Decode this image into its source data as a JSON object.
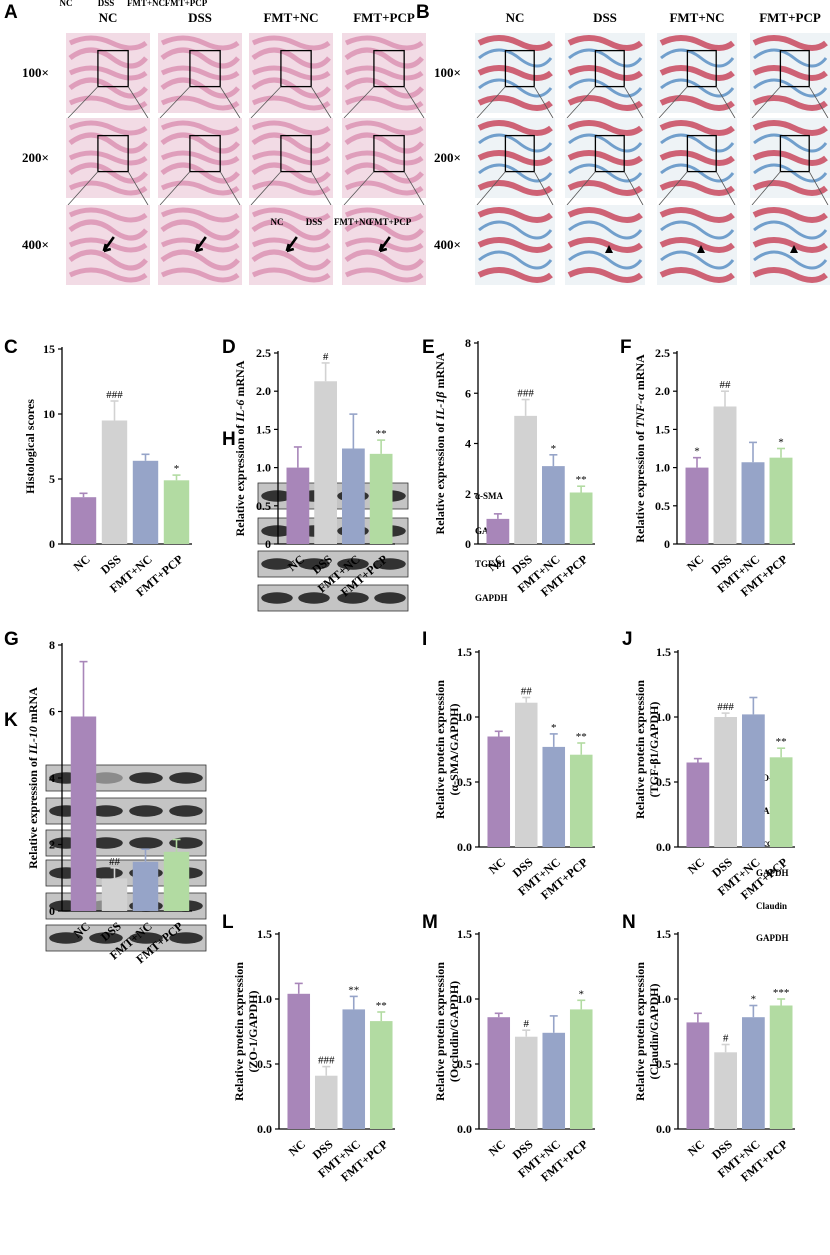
{
  "palette": {
    "NC": "#a886b9",
    "DSS": "#d2d2d2",
    "FMT+NC": "#96a4c8",
    "FMT+PCP": "#b2dba2",
    "he_tissue": "#d98fb0",
    "he_light": "#f2dbe5",
    "masson_red": "#c8485e",
    "masson_blue": "#5b8fc4",
    "masson_light": "#eef3f6",
    "blot_dark": "#222222",
    "blot_bg": "#c4c4c4"
  },
  "icons": {
    "arrow": "arrow-icon",
    "triangle": "arrowhead-icon",
    "box": "zoom-box-icon"
  },
  "panelA": {
    "label": "A",
    "groups": [
      "NC",
      "DSS",
      "FMT+NC",
      "FMT+PCP"
    ],
    "mags": [
      "100×",
      "200×",
      "400×"
    ]
  },
  "panelB": {
    "label": "B",
    "groups": [
      "NC",
      "DSS",
      "FMT+NC",
      "FMT+PCP"
    ],
    "mags": [
      "100×",
      "200×",
      "400×"
    ]
  },
  "panelH": {
    "label": "H",
    "lanes": [
      "NC",
      "DSS",
      "FMT+NC",
      "FMT+PCP"
    ],
    "bands": [
      "α-SMA",
      "GAPDH",
      "TGF-β1",
      "GAPDH"
    ]
  },
  "panelK": {
    "label": "K",
    "lanes": [
      "NC",
      "DSS",
      "FMT+NC",
      "FMT+PCP"
    ],
    "bands": [
      "ZO-1",
      "GAPDH",
      "Occludin",
      "GAPDH",
      "Claudin",
      "GAPDH"
    ]
  },
  "chart_data": [
    {
      "id": "C",
      "type": "bar",
      "categories": [
        "NC",
        "DSS",
        "FMT+NC",
        "FMT+PCP"
      ],
      "values": [
        3.6,
        9.5,
        6.4,
        4.9
      ],
      "errors": [
        0.3,
        1.5,
        0.5,
        0.4
      ],
      "annotations": [
        "",
        "###",
        "",
        "*"
      ],
      "ylabel": "Histological scores",
      "ylim": [
        0,
        15
      ],
      "yticks": [
        0,
        5,
        10,
        15
      ],
      "yticklabels": [
        "0",
        "5",
        "10",
        "15"
      ]
    },
    {
      "id": "D",
      "type": "bar",
      "categories": [
        "NC",
        "DSS",
        "FMT+NC",
        "FMT+PCP"
      ],
      "values": [
        1.0,
        2.13,
        1.25,
        1.18
      ],
      "errors": [
        0.27,
        0.24,
        0.45,
        0.18
      ],
      "annotations": [
        "",
        "#",
        "",
        "**"
      ],
      "ylabel": "Relative expression of IL-6 mRNA",
      "ylabel_pre": "Relative expression of ",
      "ylabel_it": "IL-6",
      "ylabel_post": " mRNA",
      "ylim": [
        0,
        2.5
      ],
      "yticks": [
        0,
        0.5,
        1.0,
        1.5,
        2.0,
        2.5
      ],
      "yticklabels": [
        "0",
        "0.5",
        "1.0",
        "1.5",
        "2.0",
        "2.5"
      ]
    },
    {
      "id": "E",
      "type": "bar",
      "categories": [
        "NC",
        "DSS",
        "FMT+NC",
        "FMT+PCP"
      ],
      "values": [
        1.0,
        5.1,
        3.1,
        2.05
      ],
      "errors": [
        0.2,
        0.65,
        0.45,
        0.25
      ],
      "annotations": [
        "",
        "###",
        "*",
        "**"
      ],
      "ylabel": "Relative expression of IL-1β mRNA",
      "ylabel_pre": "Relative expression of ",
      "ylabel_it": "IL-1β",
      "ylabel_post": " mRNA",
      "ylim": [
        0,
        8
      ],
      "yticks": [
        0,
        2,
        4,
        6,
        8
      ],
      "yticklabels": [
        "0",
        "2",
        "4",
        "6",
        "8"
      ]
    },
    {
      "id": "F",
      "type": "bar",
      "categories": [
        "NC",
        "DSS",
        "FMT+NC",
        "FMT+PCP"
      ],
      "values": [
        1.0,
        1.8,
        1.07,
        1.13
      ],
      "errors": [
        0.13,
        0.2,
        0.26,
        0.12
      ],
      "annotations": [
        "*",
        "##",
        "",
        "*"
      ],
      "ylabel": "Relative expression of TNF-α mRNA",
      "ylabel_pre": "Relative expression of ",
      "ylabel_it": "TNF-α",
      "ylabel_post": " mRNA",
      "ylim": [
        0,
        2.5
      ],
      "yticks": [
        0,
        0.5,
        1.0,
        1.5,
        2.0,
        2.5
      ],
      "yticklabels": [
        "0",
        "0.5",
        "1.0",
        "1.5",
        "2.0",
        "2.5"
      ]
    },
    {
      "id": "G",
      "type": "bar",
      "categories": [
        "NC",
        "DSS",
        "FMT+NC",
        "FMT+PCP"
      ],
      "values": [
        5.85,
        0.98,
        1.48,
        1.78
      ],
      "errors": [
        1.65,
        0.32,
        0.38,
        0.37
      ],
      "annotations": [
        "",
        "##",
        "",
        ""
      ],
      "ylabel": "Relative expression of IL-10 mRNA",
      "ylabel_pre": "Relative expression of ",
      "ylabel_it": "IL-10",
      "ylabel_post": " mRNA",
      "ylim": [
        0,
        8
      ],
      "yticks": [
        0,
        2,
        4,
        6,
        8
      ],
      "yticklabels": [
        "0",
        "2",
        "4",
        "6",
        "8"
      ]
    },
    {
      "id": "I",
      "type": "bar",
      "categories": [
        "NC",
        "DSS",
        "FMT+NC",
        "FMT+PCP"
      ],
      "values": [
        0.85,
        1.11,
        0.77,
        0.71
      ],
      "errors": [
        0.04,
        0.04,
        0.1,
        0.09
      ],
      "annotations": [
        "",
        "##",
        "*",
        "**"
      ],
      "ylabel_lines": [
        "Relative protein expression",
        "(α-SMA/GAPDH)"
      ],
      "ylim": [
        0,
        1.5
      ],
      "yticks": [
        0,
        0.5,
        1.0,
        1.5
      ],
      "yticklabels": [
        "0.0",
        "0.5",
        "1.0",
        "1.5"
      ]
    },
    {
      "id": "J",
      "type": "bar",
      "categories": [
        "NC",
        "DSS",
        "FMT+NC",
        "FMT+PCP"
      ],
      "values": [
        0.65,
        1.0,
        1.02,
        0.69
      ],
      "errors": [
        0.03,
        0.03,
        0.13,
        0.07
      ],
      "annotations": [
        "",
        "###",
        "",
        "**"
      ],
      "ylabel_lines": [
        "Relative protein expression",
        "(TGF-β1/GAPDH)"
      ],
      "ylim": [
        0,
        1.5
      ],
      "yticks": [
        0,
        0.5,
        1.0,
        1.5
      ],
      "yticklabels": [
        "0.0",
        "0.5",
        "1.0",
        "1.5"
      ]
    },
    {
      "id": "L",
      "type": "bar",
      "categories": [
        "NC",
        "DSS",
        "FMT+NC",
        "FMT+PCP"
      ],
      "values": [
        1.04,
        0.41,
        0.92,
        0.83
      ],
      "errors": [
        0.08,
        0.07,
        0.1,
        0.07
      ],
      "annotations": [
        "",
        "###",
        "**",
        "**"
      ],
      "ylabel_lines": [
        "Relative protein expression",
        "(ZO-1/GAPDH)"
      ],
      "ylim": [
        0,
        1.5
      ],
      "yticks": [
        0,
        0.5,
        1.0,
        1.5
      ],
      "yticklabels": [
        "0.0",
        "0.5",
        "1.0",
        "1.5"
      ]
    },
    {
      "id": "M",
      "type": "bar",
      "categories": [
        "NC",
        "DSS",
        "FMT+NC",
        "FMT+PCP"
      ],
      "values": [
        0.86,
        0.71,
        0.74,
        0.92
      ],
      "errors": [
        0.03,
        0.05,
        0.13,
        0.07
      ],
      "annotations": [
        "",
        "#",
        "",
        "*"
      ],
      "ylabel_lines": [
        "Relative protein expression",
        "(Occludin/GAPDH)"
      ],
      "ylim": [
        0,
        1.5
      ],
      "yticks": [
        0,
        0.5,
        1.0,
        1.5
      ],
      "yticklabels": [
        "0.0",
        "0.5",
        "1.0",
        "1.5"
      ]
    },
    {
      "id": "N",
      "type": "bar",
      "categories": [
        "NC",
        "DSS",
        "FMT+NC",
        "FMT+PCP"
      ],
      "values": [
        0.82,
        0.59,
        0.86,
        0.95
      ],
      "errors": [
        0.07,
        0.06,
        0.09,
        0.05
      ],
      "annotations": [
        "",
        "#",
        "*",
        "***"
      ],
      "ylabel_lines": [
        "Relative protein expression",
        "(Claudin/GAPDH)"
      ],
      "ylim": [
        0,
        1.5
      ],
      "yticks": [
        0,
        0.5,
        1.0,
        1.5
      ],
      "yticklabels": [
        "0.0",
        "0.5",
        "1.0",
        "1.5"
      ]
    }
  ]
}
